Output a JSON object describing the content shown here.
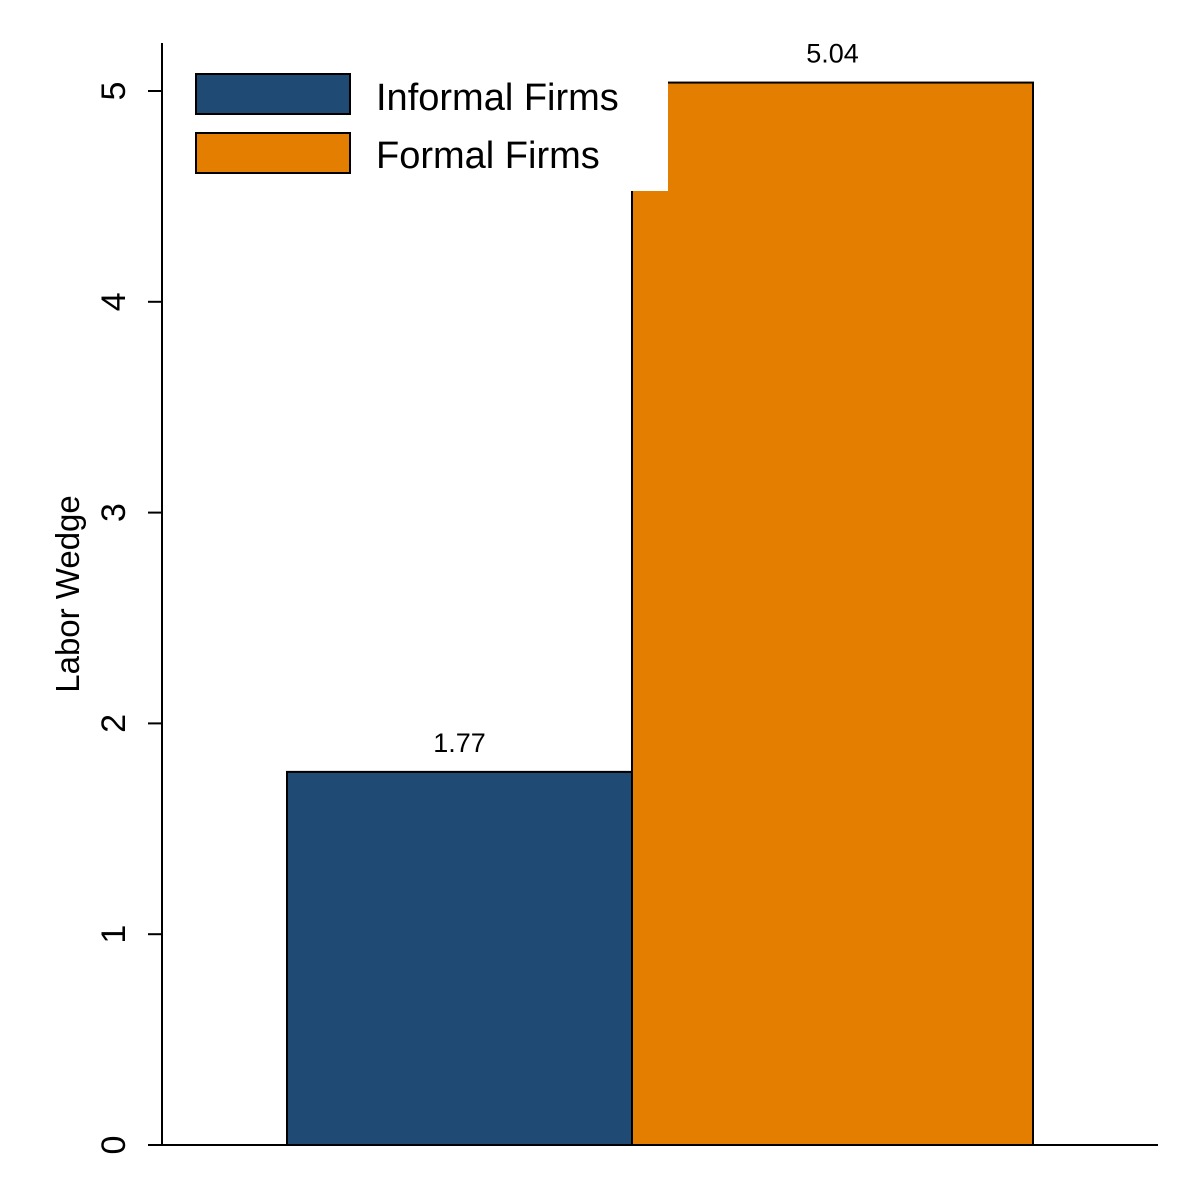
{
  "chart_data": {
    "type": "bar",
    "ylabel": "Labor Wedge",
    "ylim": [
      0,
      5.25
    ],
    "yticks": [
      0,
      1,
      2,
      3,
      4,
      5
    ],
    "series": [
      {
        "name": "Informal Firms",
        "value": 1.77,
        "label": "1.77",
        "color": "#1f4a73"
      },
      {
        "name": "Formal Firms",
        "value": 5.04,
        "label": "5.04",
        "color": "#e37e00"
      }
    ],
    "legend_position": "top-left",
    "grid": false
  }
}
